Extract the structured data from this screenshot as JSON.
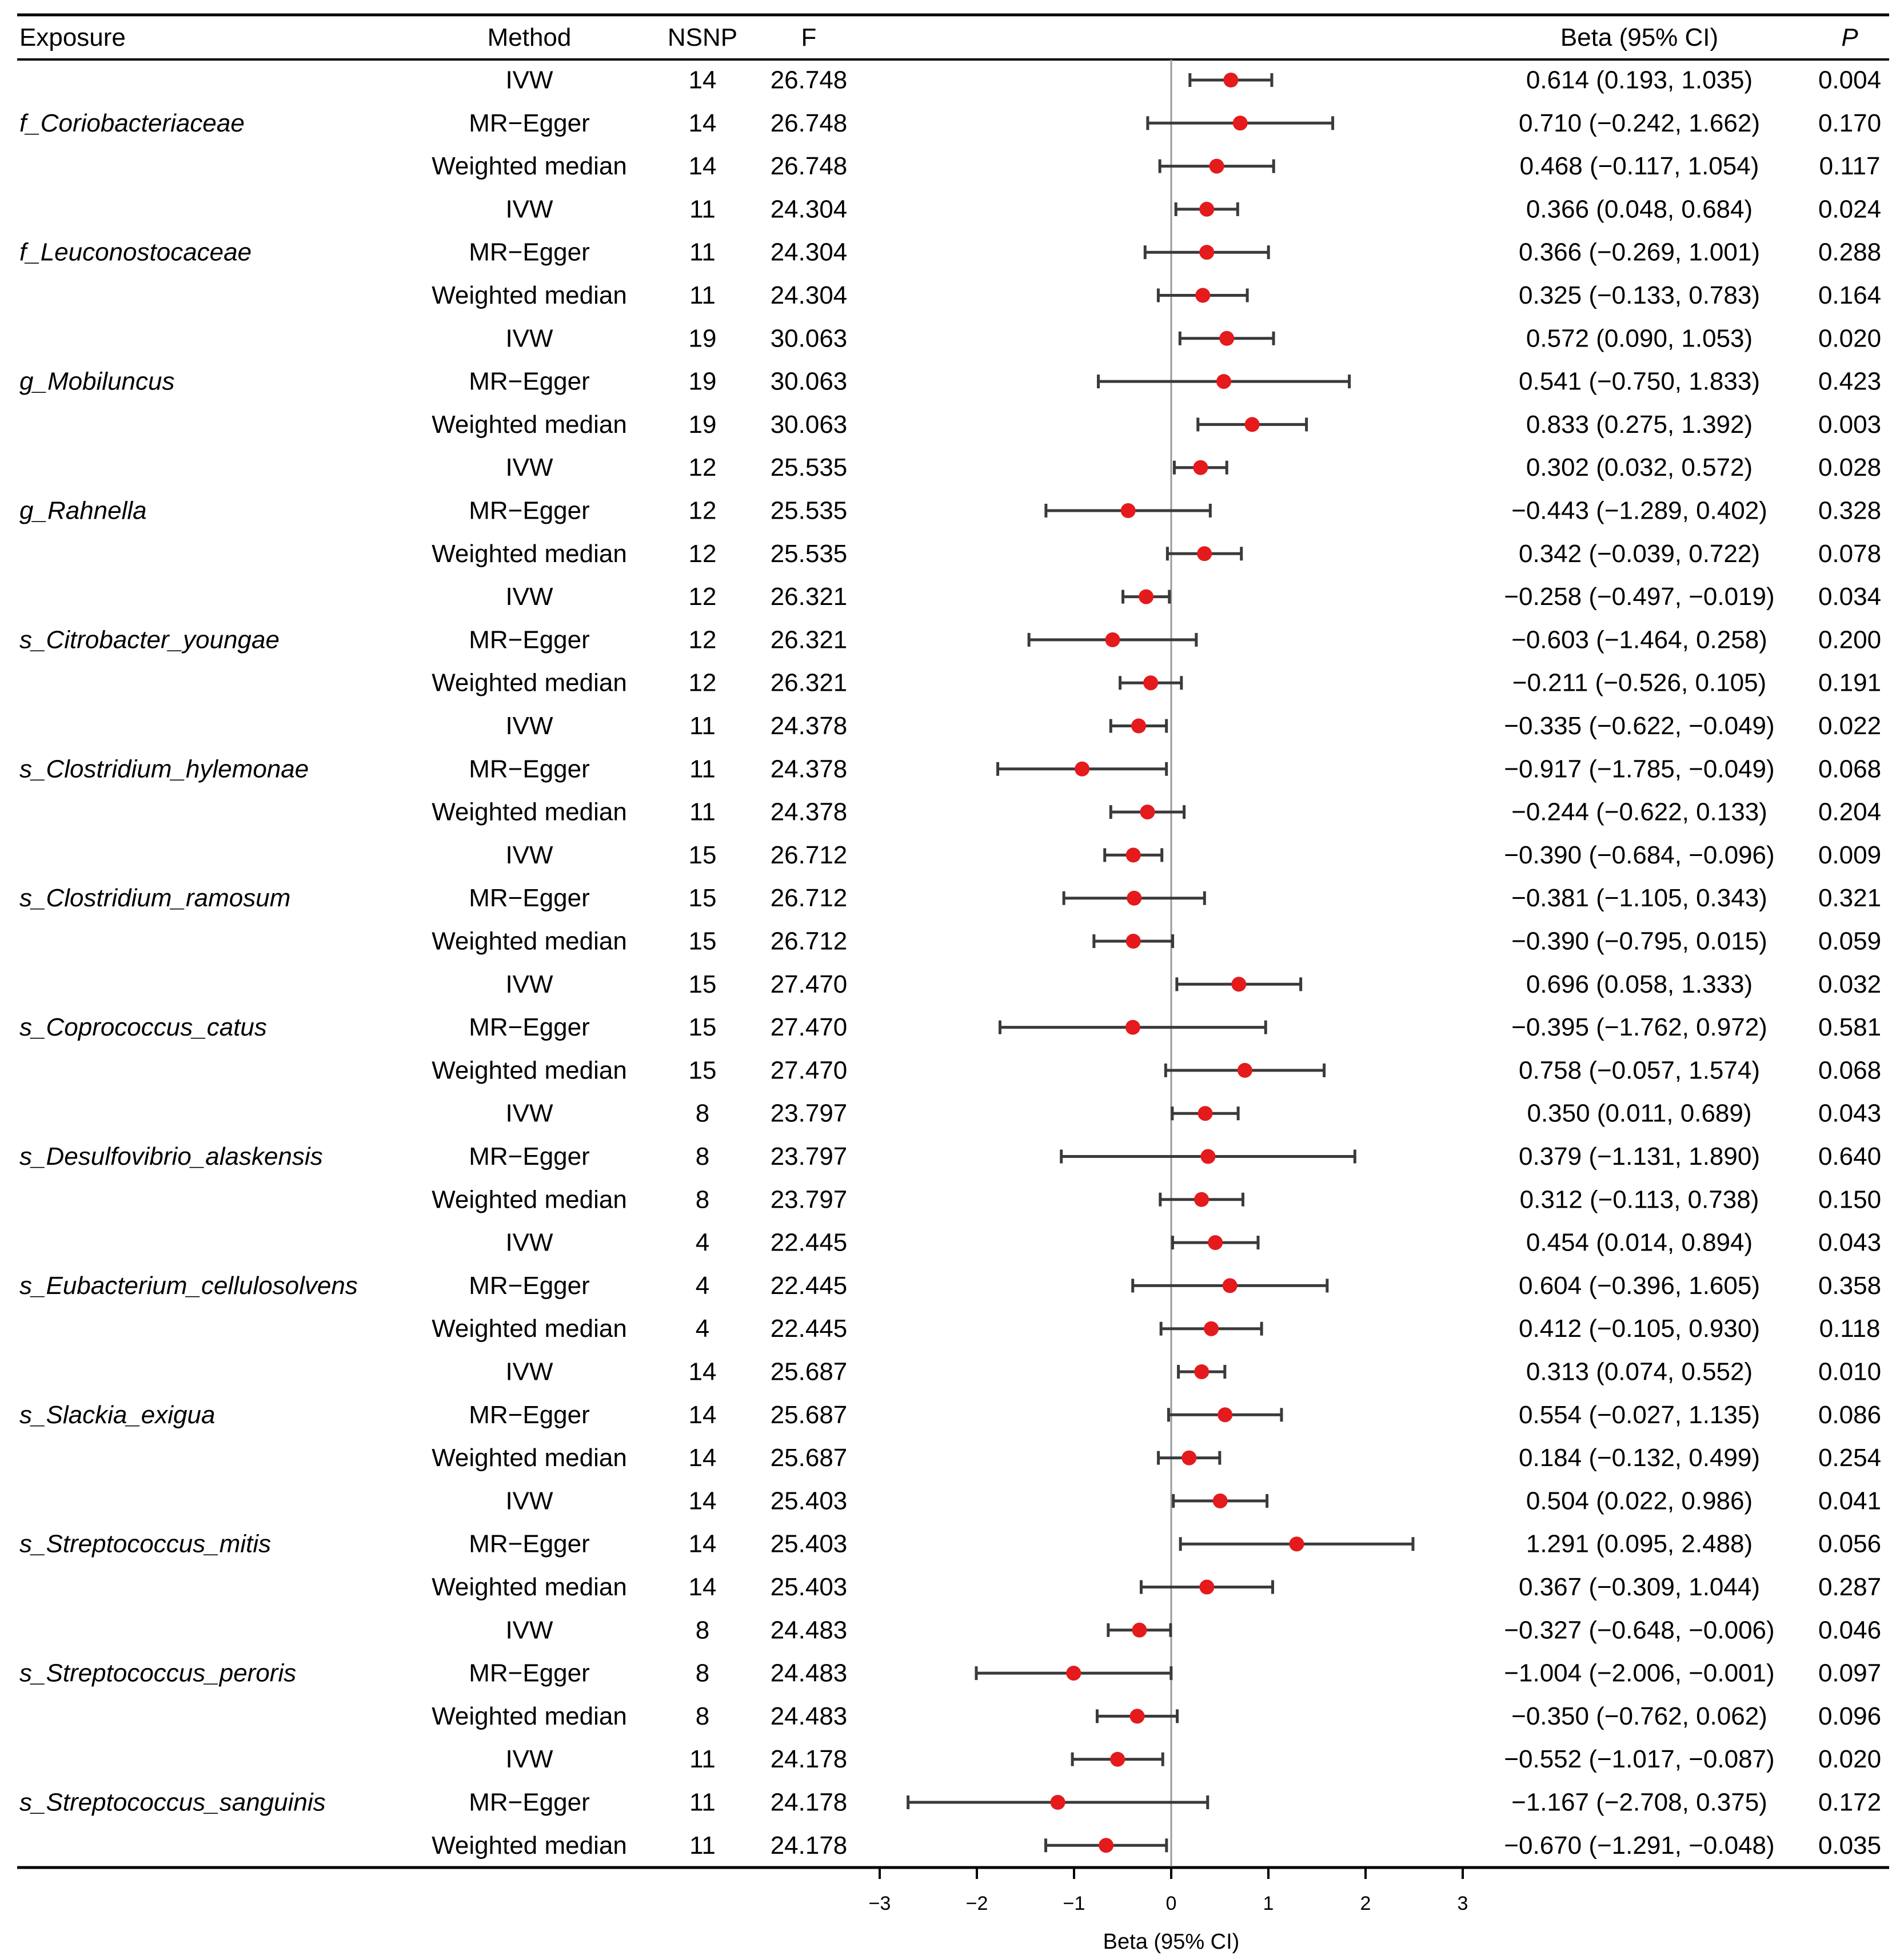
{
  "chart_data": {
    "type": "forest",
    "headers": {
      "exposure": "Exposure",
      "method": "Method",
      "nsnp": "NSNP",
      "f": "F",
      "beta": "Beta (95% CI)",
      "p": "P"
    },
    "xlabel": "Beta (95% CI)",
    "xlim": [
      -3,
      3
    ],
    "xticks": [
      "−3",
      "−2",
      "−1",
      "0",
      "1",
      "2",
      "3"
    ],
    "reference_line": 0,
    "point_color": "#e41a1c",
    "whisker_color": "#3a3a3a",
    "groups": [
      {
        "exposure": "f_Coriobacteriaceae",
        "rows": [
          {
            "method": "IVW",
            "nsnp": "14",
            "f": "26.748",
            "beta": 0.614,
            "lo": 0.193,
            "hi": 1.035,
            "ci_text": "0.614 (0.193, 1.035)",
            "p": "0.004"
          },
          {
            "method": "MR−Egger",
            "nsnp": "14",
            "f": "26.748",
            "beta": 0.71,
            "lo": -0.242,
            "hi": 1.662,
            "ci_text": "0.710 (−0.242, 1.662)",
            "p": "0.170"
          },
          {
            "method": "Weighted median",
            "nsnp": "14",
            "f": "26.748",
            "beta": 0.468,
            "lo": -0.117,
            "hi": 1.054,
            "ci_text": "0.468 (−0.117, 1.054)",
            "p": "0.117"
          }
        ]
      },
      {
        "exposure": "f_Leuconostocaceae",
        "rows": [
          {
            "method": "IVW",
            "nsnp": "11",
            "f": "24.304",
            "beta": 0.366,
            "lo": 0.048,
            "hi": 0.684,
            "ci_text": "0.366 (0.048, 0.684)",
            "p": "0.024"
          },
          {
            "method": "MR−Egger",
            "nsnp": "11",
            "f": "24.304",
            "beta": 0.366,
            "lo": -0.269,
            "hi": 1.001,
            "ci_text": "0.366 (−0.269, 1.001)",
            "p": "0.288"
          },
          {
            "method": "Weighted median",
            "nsnp": "11",
            "f": "24.304",
            "beta": 0.325,
            "lo": -0.133,
            "hi": 0.783,
            "ci_text": "0.325 (−0.133, 0.783)",
            "p": "0.164"
          }
        ]
      },
      {
        "exposure": "g_Mobiluncus",
        "rows": [
          {
            "method": "IVW",
            "nsnp": "19",
            "f": "30.063",
            "beta": 0.572,
            "lo": 0.09,
            "hi": 1.053,
            "ci_text": "0.572 (0.090, 1.053)",
            "p": "0.020"
          },
          {
            "method": "MR−Egger",
            "nsnp": "19",
            "f": "30.063",
            "beta": 0.541,
            "lo": -0.75,
            "hi": 1.833,
            "ci_text": "0.541 (−0.750, 1.833)",
            "p": "0.423"
          },
          {
            "method": "Weighted median",
            "nsnp": "19",
            "f": "30.063",
            "beta": 0.833,
            "lo": 0.275,
            "hi": 1.392,
            "ci_text": "0.833 (0.275, 1.392)",
            "p": "0.003"
          }
        ]
      },
      {
        "exposure": "g_Rahnella",
        "rows": [
          {
            "method": "IVW",
            "nsnp": "12",
            "f": "25.535",
            "beta": 0.302,
            "lo": 0.032,
            "hi": 0.572,
            "ci_text": "0.302 (0.032, 0.572)",
            "p": "0.028"
          },
          {
            "method": "MR−Egger",
            "nsnp": "12",
            "f": "25.535",
            "beta": -0.443,
            "lo": -1.289,
            "hi": 0.402,
            "ci_text": "−0.443 (−1.289, 0.402)",
            "p": "0.328"
          },
          {
            "method": "Weighted median",
            "nsnp": "12",
            "f": "25.535",
            "beta": 0.342,
            "lo": -0.039,
            "hi": 0.722,
            "ci_text": "0.342 (−0.039, 0.722)",
            "p": "0.078"
          }
        ]
      },
      {
        "exposure": "s_Citrobacter_youngae",
        "rows": [
          {
            "method": "IVW",
            "nsnp": "12",
            "f": "26.321",
            "beta": -0.258,
            "lo": -0.497,
            "hi": -0.019,
            "ci_text": "−0.258 (−0.497, −0.019)",
            "p": "0.034"
          },
          {
            "method": "MR−Egger",
            "nsnp": "12",
            "f": "26.321",
            "beta": -0.603,
            "lo": -1.464,
            "hi": 0.258,
            "ci_text": "−0.603 (−1.464, 0.258)",
            "p": "0.200"
          },
          {
            "method": "Weighted median",
            "nsnp": "12",
            "f": "26.321",
            "beta": -0.211,
            "lo": -0.526,
            "hi": 0.105,
            "ci_text": "−0.211 (−0.526, 0.105)",
            "p": "0.191"
          }
        ]
      },
      {
        "exposure": "s_Clostridium_hylemonae",
        "rows": [
          {
            "method": "IVW",
            "nsnp": "11",
            "f": "24.378",
            "beta": -0.335,
            "lo": -0.622,
            "hi": -0.049,
            "ci_text": "−0.335 (−0.622, −0.049)",
            "p": "0.022"
          },
          {
            "method": "MR−Egger",
            "nsnp": "11",
            "f": "24.378",
            "beta": -0.917,
            "lo": -1.785,
            "hi": -0.049,
            "ci_text": "−0.917 (−1.785, −0.049)",
            "p": "0.068"
          },
          {
            "method": "Weighted median",
            "nsnp": "11",
            "f": "24.378",
            "beta": -0.244,
            "lo": -0.622,
            "hi": 0.133,
            "ci_text": "−0.244 (−0.622, 0.133)",
            "p": "0.204"
          }
        ]
      },
      {
        "exposure": "s_Clostridium_ramosum",
        "rows": [
          {
            "method": "IVW",
            "nsnp": "15",
            "f": "26.712",
            "beta": -0.39,
            "lo": -0.684,
            "hi": -0.096,
            "ci_text": "−0.390 (−0.684, −0.096)",
            "p": "0.009"
          },
          {
            "method": "MR−Egger",
            "nsnp": "15",
            "f": "26.712",
            "beta": -0.381,
            "lo": -1.105,
            "hi": 0.343,
            "ci_text": "−0.381 (−1.105, 0.343)",
            "p": "0.321"
          },
          {
            "method": "Weighted median",
            "nsnp": "15",
            "f": "26.712",
            "beta": -0.39,
            "lo": -0.795,
            "hi": 0.015,
            "ci_text": "−0.390 (−0.795, 0.015)",
            "p": "0.059"
          }
        ]
      },
      {
        "exposure": "s_Coprococcus_catus",
        "rows": [
          {
            "method": "IVW",
            "nsnp": "15",
            "f": "27.470",
            "beta": 0.696,
            "lo": 0.058,
            "hi": 1.333,
            "ci_text": "0.696 (0.058, 1.333)",
            "p": "0.032"
          },
          {
            "method": "MR−Egger",
            "nsnp": "15",
            "f": "27.470",
            "beta": -0.395,
            "lo": -1.762,
            "hi": 0.972,
            "ci_text": "−0.395 (−1.762, 0.972)",
            "p": "0.581"
          },
          {
            "method": "Weighted median",
            "nsnp": "15",
            "f": "27.470",
            "beta": 0.758,
            "lo": -0.057,
            "hi": 1.574,
            "ci_text": "0.758 (−0.057, 1.574)",
            "p": "0.068"
          }
        ]
      },
      {
        "exposure": "s_Desulfovibrio_alaskensis",
        "rows": [
          {
            "method": "IVW",
            "nsnp": "8",
            "f": "23.797",
            "beta": 0.35,
            "lo": 0.011,
            "hi": 0.689,
            "ci_text": "0.350 (0.011, 0.689)",
            "p": "0.043"
          },
          {
            "method": "MR−Egger",
            "nsnp": "8",
            "f": "23.797",
            "beta": 0.379,
            "lo": -1.131,
            "hi": 1.89,
            "ci_text": "0.379 (−1.131, 1.890)",
            "p": "0.640"
          },
          {
            "method": "Weighted median",
            "nsnp": "8",
            "f": "23.797",
            "beta": 0.312,
            "lo": -0.113,
            "hi": 0.738,
            "ci_text": "0.312 (−0.113, 0.738)",
            "p": "0.150"
          }
        ]
      },
      {
        "exposure": "s_Eubacterium_cellulosolvens",
        "rows": [
          {
            "method": "IVW",
            "nsnp": "4",
            "f": "22.445",
            "beta": 0.454,
            "lo": 0.014,
            "hi": 0.894,
            "ci_text": "0.454 (0.014, 0.894)",
            "p": "0.043"
          },
          {
            "method": "MR−Egger",
            "nsnp": "4",
            "f": "22.445",
            "beta": 0.604,
            "lo": -0.396,
            "hi": 1.605,
            "ci_text": "0.604 (−0.396, 1.605)",
            "p": "0.358"
          },
          {
            "method": "Weighted median",
            "nsnp": "4",
            "f": "22.445",
            "beta": 0.412,
            "lo": -0.105,
            "hi": 0.93,
            "ci_text": "0.412 (−0.105, 0.930)",
            "p": "0.118"
          }
        ]
      },
      {
        "exposure": "s_Slackia_exigua",
        "rows": [
          {
            "method": "IVW",
            "nsnp": "14",
            "f": "25.687",
            "beta": 0.313,
            "lo": 0.074,
            "hi": 0.552,
            "ci_text": "0.313 (0.074, 0.552)",
            "p": "0.010"
          },
          {
            "method": "MR−Egger",
            "nsnp": "14",
            "f": "25.687",
            "beta": 0.554,
            "lo": -0.027,
            "hi": 1.135,
            "ci_text": "0.554 (−0.027, 1.135)",
            "p": "0.086"
          },
          {
            "method": "Weighted median",
            "nsnp": "14",
            "f": "25.687",
            "beta": 0.184,
            "lo": -0.132,
            "hi": 0.499,
            "ci_text": "0.184 (−0.132, 0.499)",
            "p": "0.254"
          }
        ]
      },
      {
        "exposure": "s_Streptococcus_mitis",
        "rows": [
          {
            "method": "IVW",
            "nsnp": "14",
            "f": "25.403",
            "beta": 0.504,
            "lo": 0.022,
            "hi": 0.986,
            "ci_text": "0.504 (0.022, 0.986)",
            "p": "0.041"
          },
          {
            "method": "MR−Egger",
            "nsnp": "14",
            "f": "25.403",
            "beta": 1.291,
            "lo": 0.095,
            "hi": 2.488,
            "ci_text": "1.291 (0.095, 2.488)",
            "p": "0.056"
          },
          {
            "method": "Weighted median",
            "nsnp": "14",
            "f": "25.403",
            "beta": 0.367,
            "lo": -0.309,
            "hi": 1.044,
            "ci_text": "0.367 (−0.309, 1.044)",
            "p": "0.287"
          }
        ]
      },
      {
        "exposure": "s_Streptococcus_peroris",
        "rows": [
          {
            "method": "IVW",
            "nsnp": "8",
            "f": "24.483",
            "beta": -0.327,
            "lo": -0.648,
            "hi": -0.006,
            "ci_text": "−0.327 (−0.648, −0.006)",
            "p": "0.046"
          },
          {
            "method": "MR−Egger",
            "nsnp": "8",
            "f": "24.483",
            "beta": -1.004,
            "lo": -2.006,
            "hi": -0.001,
            "ci_text": "−1.004 (−2.006, −0.001)",
            "p": "0.097"
          },
          {
            "method": "Weighted median",
            "nsnp": "8",
            "f": "24.483",
            "beta": -0.35,
            "lo": -0.762,
            "hi": 0.062,
            "ci_text": "−0.350 (−0.762, 0.062)",
            "p": "0.096"
          }
        ]
      },
      {
        "exposure": "s_Streptococcus_sanguinis",
        "rows": [
          {
            "method": "IVW",
            "nsnp": "11",
            "f": "24.178",
            "beta": -0.552,
            "lo": -1.017,
            "hi": -0.087,
            "ci_text": "−0.552 (−1.017, −0.087)",
            "p": "0.020"
          },
          {
            "method": "MR−Egger",
            "nsnp": "11",
            "f": "24.178",
            "beta": -1.167,
            "lo": -2.708,
            "hi": 0.375,
            "ci_text": "−1.167 (−2.708, 0.375)",
            "p": "0.172"
          },
          {
            "method": "Weighted median",
            "nsnp": "11",
            "f": "24.178",
            "beta": -0.67,
            "lo": -1.291,
            "hi": -0.048,
            "ci_text": "−0.670 (−1.291, −0.048)",
            "p": "0.035"
          }
        ]
      }
    ]
  }
}
